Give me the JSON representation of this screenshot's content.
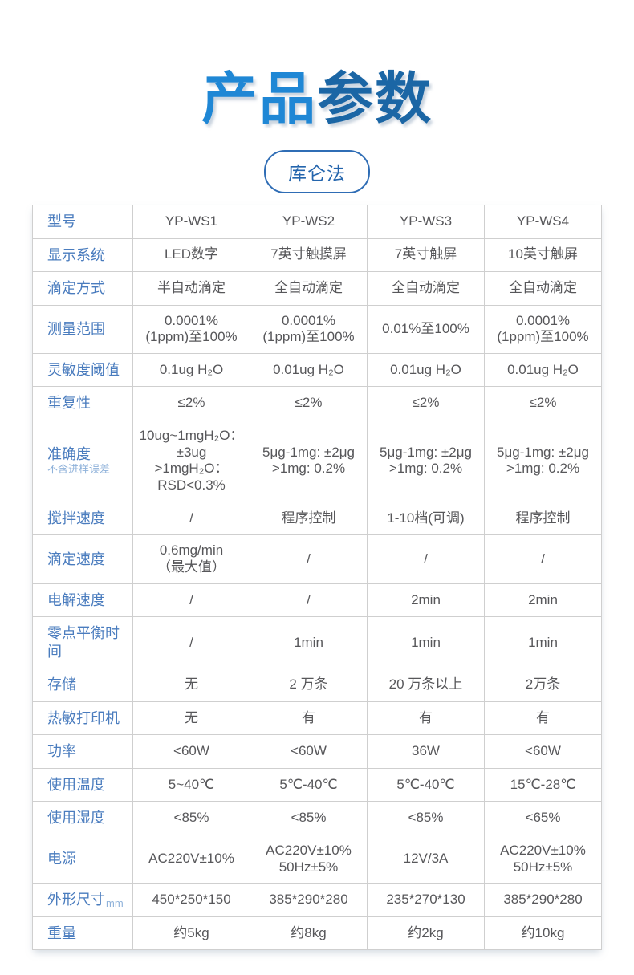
{
  "colors": {
    "accent1": "#1f87d5",
    "accent2": "#1b66a5",
    "badge_border": "#2f6db5",
    "badge_text": "#2465ad",
    "label": "#4a7cbe",
    "sublabel": "#8fb2da",
    "text": "#57575a",
    "border": "#cfcfcf"
  },
  "header": {
    "title_part1": "产品",
    "title_part2": "参数",
    "badge_label": "库仑法"
  },
  "table": {
    "rows": [
      {
        "label": "型号",
        "cells": [
          "YP-WS1",
          "YP-WS2",
          "YP-WS3",
          "YP-WS4"
        ]
      },
      {
        "label": "显示系统",
        "cells": [
          "LED数字",
          "7英寸触摸屏",
          "7英寸触屏",
          "10英寸触屏"
        ]
      },
      {
        "label": "滴定方式",
        "cells": [
          "半自动滴定",
          "全自动滴定",
          "全自动滴定",
          "全自动滴定"
        ]
      },
      {
        "label": "测量范围",
        "cells": [
          "0.0001%\n(1ppm)至100%",
          "0.0001%\n(1ppm)至100%",
          "0.01%至100%",
          "0.0001%\n(1ppm)至100%"
        ]
      },
      {
        "label": "灵敏度阈值",
        "cells": [
          "0.1ug H₂O",
          "0.01ug H₂O",
          "0.01ug H₂O",
          "0.01ug H₂O"
        ]
      },
      {
        "label": "重复性",
        "cells": [
          "≤2%",
          "≤2%",
          "≤2%",
          "≤2%"
        ]
      },
      {
        "label": "准确度",
        "sub": "不含进样误差",
        "sub_mode": "block",
        "cells": [
          "10ug~1mgH₂O：\n±3ug\n>1mgH₂O：\nRSD<0.3%",
          "5μg-1mg: ±2μg\n>1mg: 0.2%",
          "5μg-1mg: ±2μg\n>1mg: 0.2%",
          "5μg-1mg: ±2μg\n>1mg: 0.2%"
        ]
      },
      {
        "label": "搅拌速度",
        "cells": [
          "/",
          "程序控制",
          "1-10档(可调)",
          "程序控制"
        ]
      },
      {
        "label": "滴定速度",
        "cells": [
          "0.6mg/min\n（最大值）",
          "/",
          "/",
          "/"
        ]
      },
      {
        "label": "电解速度",
        "cells": [
          "/",
          "/",
          "2min",
          "2min"
        ]
      },
      {
        "label": "零点平衡时间",
        "cells": [
          "/",
          "1min",
          "1min",
          "1min"
        ]
      },
      {
        "label": "存储",
        "cells": [
          "无",
          "2 万条",
          "20 万条以上",
          "2万条"
        ]
      },
      {
        "label": "热敏打印机",
        "cells": [
          "无",
          "有",
          "有",
          "有"
        ]
      },
      {
        "label": "功率",
        "cells": [
          "<60W",
          "<60W",
          "36W",
          "<60W"
        ]
      },
      {
        "label": "使用温度",
        "cells": [
          "5~40℃",
          "5℃-40℃",
          "5℃-40℃",
          "15℃-28℃"
        ]
      },
      {
        "label": "使用湿度",
        "cells": [
          "<85%",
          "<85%",
          "<85%",
          "<65%"
        ]
      },
      {
        "label": "电源",
        "cells": [
          "AC220V±10%",
          "AC220V±10%\n50Hz±5%",
          "12V/3A",
          "AC220V±10%\n50Hz±5%"
        ]
      },
      {
        "label": "外形尺寸",
        "sub": "mm",
        "sub_mode": "inline",
        "cells": [
          "450*250*150",
          "385*290*280",
          "235*270*130",
          "385*290*280"
        ]
      },
      {
        "label": "重量",
        "cells": [
          "约5kg",
          "约8kg",
          "约2kg",
          "约10kg"
        ]
      }
    ]
  }
}
